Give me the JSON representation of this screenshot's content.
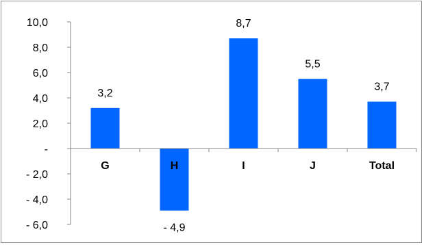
{
  "chart_data": {
    "type": "bar",
    "categories": [
      "G",
      "H",
      "I",
      "J",
      "Total"
    ],
    "values": [
      3.2,
      -4.9,
      8.7,
      5.5,
      3.7
    ],
    "value_labels": [
      "3,2",
      "- 4,9",
      "8,7",
      "5,5",
      "3,7"
    ],
    "title": "",
    "xlabel": "",
    "ylabel": "",
    "ylim": [
      -6.0,
      10.0
    ],
    "yticks": [
      10.0,
      8.0,
      6.0,
      4.0,
      2.0,
      0.0,
      -2.0,
      -4.0,
      -6.0
    ],
    "ytick_labels": [
      "10,0",
      "8,0",
      "6,0",
      "4,0",
      "2,0",
      "-",
      "- 2,0",
      "- 4,0",
      "- 6,0"
    ],
    "grid": false,
    "legend": "none",
    "bar_color": "#0066FF"
  }
}
